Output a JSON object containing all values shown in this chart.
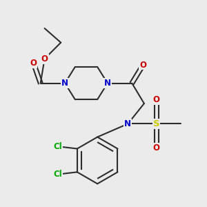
{
  "background_color": "#ebebeb",
  "bond_color": "#2d2d2d",
  "atom_colors": {
    "N": "#0000cc",
    "O": "#cc0000",
    "S": "#cccc00",
    "Cl": "#00aa00",
    "C": "#2d2d2d"
  },
  "figsize": [
    3.0,
    3.0
  ],
  "dpi": 100,
  "lw": 1.5,
  "fs": 8.5
}
